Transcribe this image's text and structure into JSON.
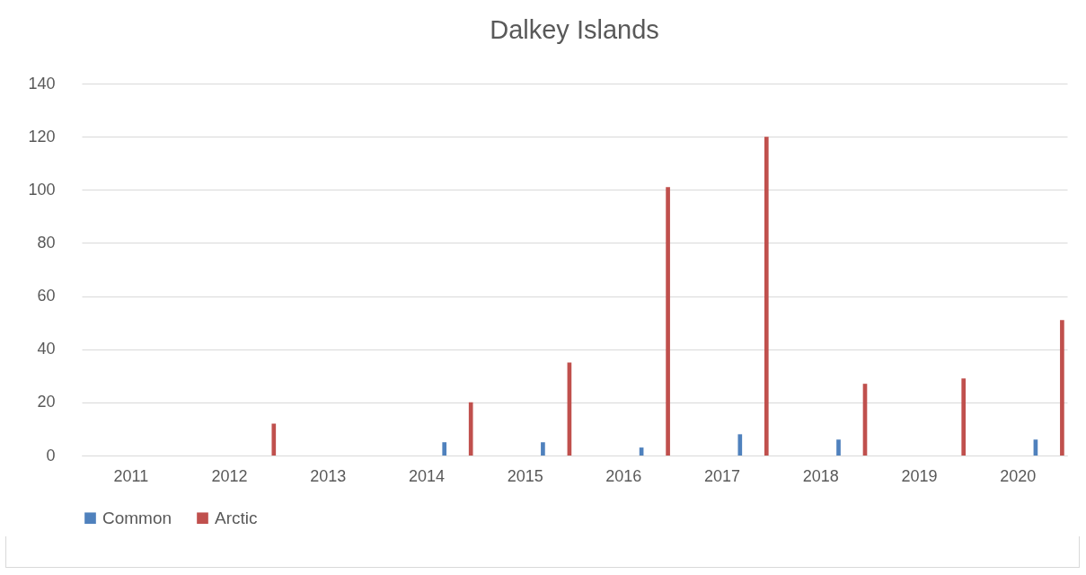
{
  "chart_data": {
    "type": "bar",
    "title": "Dalkey Islands",
    "categories": [
      "2011",
      "2012",
      "2013",
      "2014",
      "2015",
      "2016",
      "2017",
      "2018",
      "2019",
      "2020"
    ],
    "series": [
      {
        "name": "Common",
        "color": "#4f81bd",
        "values": [
          0,
          0,
          0,
          5,
          5,
          3,
          8,
          6,
          0,
          6
        ]
      },
      {
        "name": "Arctic",
        "color": "#c0504d",
        "values": [
          0,
          12,
          0,
          20,
          35,
          101,
          120,
          27,
          29,
          51
        ]
      }
    ],
    "ylim": [
      0,
      140
    ],
    "yticks": [
      0,
      20,
      40,
      60,
      80,
      100,
      120,
      140
    ],
    "grid": "y",
    "legend": "bottom"
  }
}
